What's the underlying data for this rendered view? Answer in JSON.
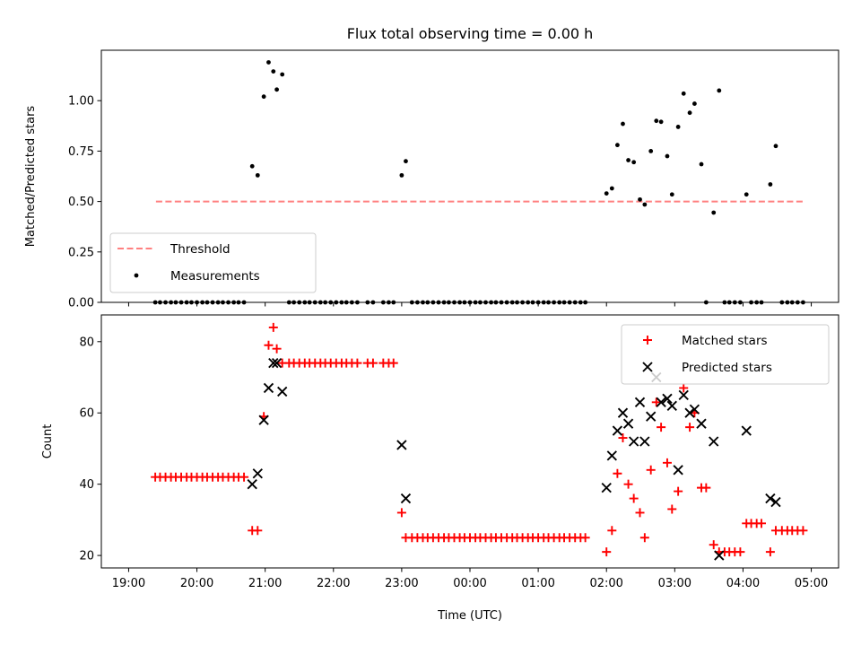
{
  "chart_data": [
    {
      "type": "scatter",
      "title": "Flux total observing time = 0.00 h",
      "xlabel": "",
      "ylabel": "Matched/Predicted stars",
      "xlim": [
        -0.4,
        10.4
      ],
      "ylim": [
        0,
        1.25
      ],
      "yticks": [
        0.0,
        0.25,
        0.5,
        0.75,
        1.0
      ],
      "ytick_labels": [
        "0.00",
        "0.25",
        "0.50",
        "0.75",
        "1.00"
      ],
      "xticks": [
        0,
        1,
        2,
        3,
        4,
        5,
        6,
        7,
        8,
        9,
        10
      ],
      "grid": false,
      "legend": {
        "position": "lower-left",
        "entries": [
          "Threshold",
          "Measurements"
        ]
      },
      "threshold": {
        "name": "Threshold",
        "value": 0.5,
        "x_range": [
          0.4,
          9.9
        ],
        "color": "#ff8080",
        "style": "dashed"
      },
      "series": [
        {
          "name": "Measurements",
          "color": "#000000",
          "marker": "dot",
          "points": [
            [
              0.39,
              0
            ],
            [
              0.46,
              0
            ],
            [
              0.54,
              0
            ],
            [
              0.62,
              0
            ],
            [
              0.69,
              0
            ],
            [
              0.77,
              0
            ],
            [
              0.85,
              0
            ],
            [
              0.92,
              0
            ],
            [
              1.0,
              0
            ],
            [
              1.08,
              0
            ],
            [
              1.15,
              0
            ],
            [
              1.23,
              0
            ],
            [
              1.31,
              0
            ],
            [
              1.38,
              0
            ],
            [
              1.46,
              0
            ],
            [
              1.54,
              0
            ],
            [
              1.61,
              0
            ],
            [
              1.69,
              0
            ],
            [
              1.81,
              0.675
            ],
            [
              1.89,
              0.63
            ],
            [
              1.98,
              1.02
            ],
            [
              2.05,
              1.19
            ],
            [
              2.12,
              1.145
            ],
            [
              2.17,
              1.055
            ],
            [
              2.25,
              1.13
            ],
            [
              2.35,
              0
            ],
            [
              2.42,
              0
            ],
            [
              2.5,
              0
            ],
            [
              2.58,
              0
            ],
            [
              2.65,
              0
            ],
            [
              2.73,
              0
            ],
            [
              2.81,
              0
            ],
            [
              2.88,
              0
            ],
            [
              2.96,
              0
            ],
            [
              3.04,
              0
            ],
            [
              3.12,
              0
            ],
            [
              3.19,
              0
            ],
            [
              3.27,
              0
            ],
            [
              3.35,
              0
            ],
            [
              3.5,
              0
            ],
            [
              3.58,
              0
            ],
            [
              3.73,
              0
            ],
            [
              3.81,
              0
            ],
            [
              3.88,
              0
            ],
            [
              4.0,
              0.63
            ],
            [
              4.06,
              0.7
            ],
            [
              4.15,
              0
            ],
            [
              4.23,
              0
            ],
            [
              4.31,
              0
            ],
            [
              4.38,
              0
            ],
            [
              4.46,
              0
            ],
            [
              4.54,
              0
            ],
            [
              4.62,
              0
            ],
            [
              4.69,
              0
            ],
            [
              4.77,
              0
            ],
            [
              4.85,
              0
            ],
            [
              4.92,
              0
            ],
            [
              5.0,
              0
            ],
            [
              5.08,
              0
            ],
            [
              5.15,
              0
            ],
            [
              5.23,
              0
            ],
            [
              5.31,
              0
            ],
            [
              5.38,
              0
            ],
            [
              5.46,
              0
            ],
            [
              5.54,
              0
            ],
            [
              5.62,
              0
            ],
            [
              5.69,
              0
            ],
            [
              5.77,
              0
            ],
            [
              5.85,
              0
            ],
            [
              5.92,
              0
            ],
            [
              6.0,
              0
            ],
            [
              6.08,
              0
            ],
            [
              6.15,
              0
            ],
            [
              6.23,
              0
            ],
            [
              6.31,
              0
            ],
            [
              6.38,
              0
            ],
            [
              6.46,
              0
            ],
            [
              6.54,
              0
            ],
            [
              6.62,
              0
            ],
            [
              6.69,
              0
            ],
            [
              7.0,
              0.54
            ],
            [
              7.08,
              0.565
            ],
            [
              7.16,
              0.78
            ],
            [
              7.24,
              0.885
            ],
            [
              7.32,
              0.705
            ],
            [
              7.4,
              0.695
            ],
            [
              7.49,
              0.51
            ],
            [
              7.56,
              0.485
            ],
            [
              7.65,
              0.75
            ],
            [
              7.73,
              0.9
            ],
            [
              7.8,
              0.895
            ],
            [
              7.89,
              0.725
            ],
            [
              7.96,
              0.535
            ],
            [
              8.05,
              0.87
            ],
            [
              8.13,
              1.035
            ],
            [
              8.22,
              0.94
            ],
            [
              8.29,
              0.985
            ],
            [
              8.39,
              0.685
            ],
            [
              8.46,
              0
            ],
            [
              8.57,
              0.445
            ],
            [
              8.65,
              1.05
            ],
            [
              8.73,
              0
            ],
            [
              8.8,
              0
            ],
            [
              8.88,
              0
            ],
            [
              8.96,
              0
            ],
            [
              9.05,
              0.535
            ],
            [
              9.12,
              0
            ],
            [
              9.2,
              0
            ],
            [
              9.27,
              0
            ],
            [
              9.4,
              0.585
            ],
            [
              9.48,
              0.775
            ],
            [
              9.57,
              0
            ],
            [
              9.65,
              0
            ],
            [
              9.72,
              0
            ],
            [
              9.8,
              0
            ],
            [
              9.88,
              0
            ]
          ]
        }
      ]
    },
    {
      "type": "scatter",
      "title": "",
      "xlabel": "Time (UTC)",
      "ylabel": "Count",
      "xlim": [
        -0.4,
        10.4
      ],
      "ylim": [
        16.5,
        87.5
      ],
      "yticks": [
        20,
        40,
        60,
        80
      ],
      "ytick_labels": [
        "20",
        "40",
        "60",
        "80"
      ],
      "xticks": [
        0,
        1,
        2,
        3,
        4,
        5,
        6,
        7,
        8,
        9,
        10
      ],
      "xtick_labels": [
        "19:00",
        "20:00",
        "21:00",
        "22:00",
        "23:00",
        "00:00",
        "01:00",
        "02:00",
        "03:00",
        "04:00",
        "05:00"
      ],
      "grid": false,
      "legend": {
        "position": "top-right",
        "entries": [
          "Matched stars",
          "Predicted stars"
        ]
      },
      "series": [
        {
          "name": "Matched stars",
          "color": "#ff0000",
          "marker": "plus",
          "points": [
            [
              0.39,
              42
            ],
            [
              0.46,
              42
            ],
            [
              0.54,
              42
            ],
            [
              0.62,
              42
            ],
            [
              0.69,
              42
            ],
            [
              0.77,
              42
            ],
            [
              0.85,
              42
            ],
            [
              0.92,
              42
            ],
            [
              1.0,
              42
            ],
            [
              1.08,
              42
            ],
            [
              1.15,
              42
            ],
            [
              1.23,
              42
            ],
            [
              1.31,
              42
            ],
            [
              1.38,
              42
            ],
            [
              1.46,
              42
            ],
            [
              1.54,
              42
            ],
            [
              1.61,
              42
            ],
            [
              1.69,
              42
            ],
            [
              1.81,
              27
            ],
            [
              1.89,
              27
            ],
            [
              1.98,
              59
            ],
            [
              2.05,
              79
            ],
            [
              2.12,
              84
            ],
            [
              2.17,
              78
            ],
            [
              2.25,
              74
            ],
            [
              2.35,
              74
            ],
            [
              2.42,
              74
            ],
            [
              2.5,
              74
            ],
            [
              2.58,
              74
            ],
            [
              2.65,
              74
            ],
            [
              2.73,
              74
            ],
            [
              2.81,
              74
            ],
            [
              2.88,
              74
            ],
            [
              2.96,
              74
            ],
            [
              3.04,
              74
            ],
            [
              3.12,
              74
            ],
            [
              3.19,
              74
            ],
            [
              3.27,
              74
            ],
            [
              3.35,
              74
            ],
            [
              3.5,
              74
            ],
            [
              3.58,
              74
            ],
            [
              3.73,
              74
            ],
            [
              3.81,
              74
            ],
            [
              3.88,
              74
            ],
            [
              4.0,
              32
            ],
            [
              4.06,
              25
            ],
            [
              4.15,
              25
            ],
            [
              4.23,
              25
            ],
            [
              4.31,
              25
            ],
            [
              4.38,
              25
            ],
            [
              4.46,
              25
            ],
            [
              4.54,
              25
            ],
            [
              4.62,
              25
            ],
            [
              4.69,
              25
            ],
            [
              4.77,
              25
            ],
            [
              4.85,
              25
            ],
            [
              4.92,
              25
            ],
            [
              5.0,
              25
            ],
            [
              5.08,
              25
            ],
            [
              5.15,
              25
            ],
            [
              5.23,
              25
            ],
            [
              5.31,
              25
            ],
            [
              5.38,
              25
            ],
            [
              5.46,
              25
            ],
            [
              5.54,
              25
            ],
            [
              5.62,
              25
            ],
            [
              5.69,
              25
            ],
            [
              5.77,
              25
            ],
            [
              5.85,
              25
            ],
            [
              5.92,
              25
            ],
            [
              6.0,
              25
            ],
            [
              6.08,
              25
            ],
            [
              6.15,
              25
            ],
            [
              6.23,
              25
            ],
            [
              6.31,
              25
            ],
            [
              6.38,
              25
            ],
            [
              6.46,
              25
            ],
            [
              6.54,
              25
            ],
            [
              6.62,
              25
            ],
            [
              6.69,
              25
            ],
            [
              7.0,
              21
            ],
            [
              7.08,
              27
            ],
            [
              7.16,
              43
            ],
            [
              7.24,
              53
            ],
            [
              7.32,
              40
            ],
            [
              7.4,
              36
            ],
            [
              7.49,
              32
            ],
            [
              7.56,
              25
            ],
            [
              7.65,
              44
            ],
            [
              7.73,
              63
            ],
            [
              7.8,
              56
            ],
            [
              7.89,
              46
            ],
            [
              7.96,
              33
            ],
            [
              8.05,
              38
            ],
            [
              8.13,
              67
            ],
            [
              8.22,
              56
            ],
            [
              8.29,
              60
            ],
            [
              8.39,
              39
            ],
            [
              8.46,
              39
            ],
            [
              8.57,
              23
            ],
            [
              8.65,
              21
            ],
            [
              8.73,
              21
            ],
            [
              8.8,
              21
            ],
            [
              8.88,
              21
            ],
            [
              8.96,
              21
            ],
            [
              9.05,
              29
            ],
            [
              9.12,
              29
            ],
            [
              9.2,
              29
            ],
            [
              9.27,
              29
            ],
            [
              9.4,
              21
            ],
            [
              9.48,
              27
            ],
            [
              9.57,
              27
            ],
            [
              9.65,
              27
            ],
            [
              9.72,
              27
            ],
            [
              9.8,
              27
            ],
            [
              9.88,
              27
            ]
          ]
        },
        {
          "name": "Predicted stars",
          "color": "#000000",
          "marker": "x",
          "points": [
            [
              1.81,
              40
            ],
            [
              1.89,
              43
            ],
            [
              1.98,
              58
            ],
            [
              2.05,
              67
            ],
            [
              2.12,
              74
            ],
            [
              2.17,
              74
            ],
            [
              2.25,
              66
            ],
            [
              4.0,
              51
            ],
            [
              4.06,
              36
            ],
            [
              7.0,
              39
            ],
            [
              7.08,
              48
            ],
            [
              7.16,
              55
            ],
            [
              7.24,
              60
            ],
            [
              7.32,
              57
            ],
            [
              7.4,
              52
            ],
            [
              7.49,
              63
            ],
            [
              7.56,
              52
            ],
            [
              7.65,
              59
            ],
            [
              7.73,
              70
            ],
            [
              7.8,
              63
            ],
            [
              7.89,
              64
            ],
            [
              7.96,
              62
            ],
            [
              8.05,
              44
            ],
            [
              8.13,
              65
            ],
            [
              8.22,
              60
            ],
            [
              8.29,
              61
            ],
            [
              8.39,
              57
            ],
            [
              8.57,
              52
            ],
            [
              8.65,
              20
            ],
            [
              9.05,
              55
            ],
            [
              9.4,
              36
            ],
            [
              9.48,
              35
            ]
          ]
        }
      ]
    }
  ]
}
